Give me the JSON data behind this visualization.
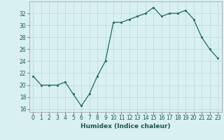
{
  "x": [
    0,
    1,
    2,
    3,
    4,
    5,
    6,
    7,
    8,
    9,
    10,
    11,
    12,
    13,
    14,
    15,
    16,
    17,
    18,
    19,
    20,
    21,
    22,
    23
  ],
  "y": [
    21.5,
    20.0,
    20.0,
    20.0,
    20.5,
    18.5,
    16.5,
    18.5,
    21.5,
    24.0,
    30.5,
    30.5,
    31.0,
    31.5,
    32.0,
    33.0,
    31.5,
    32.0,
    32.0,
    32.5,
    31.0,
    28.0,
    26.0,
    24.5
  ],
  "xlabel": "Humidex (Indice chaleur)",
  "ylim": [
    15.5,
    34
  ],
  "xlim": [
    -0.5,
    23.5
  ],
  "yticks": [
    16,
    18,
    20,
    22,
    24,
    26,
    28,
    30,
    32
  ],
  "xticks": [
    0,
    1,
    2,
    3,
    4,
    5,
    6,
    7,
    8,
    9,
    10,
    11,
    12,
    13,
    14,
    15,
    16,
    17,
    18,
    19,
    20,
    21,
    22,
    23
  ],
  "line_color": "#1f6b5a",
  "marker_color": "#1f6b5a",
  "bg_color": "#d9f0f0",
  "grid_color": "#b8d8d8",
  "label_color": "#1a5a4a",
  "tick_fontsize": 5.5,
  "xlabel_fontsize": 6.5
}
